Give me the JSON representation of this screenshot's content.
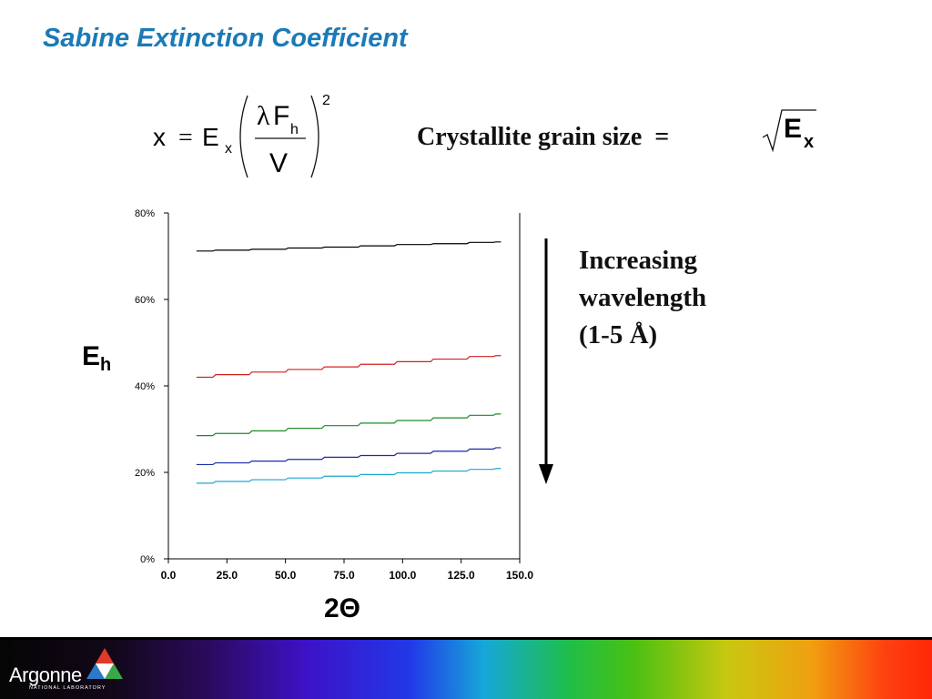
{
  "slide": {
    "title": "Sabine Extinction Coefficient",
    "crystallite_label": "Crystallite grain size  =",
    "sqrt_symbol": "E",
    "sqrt_subscript": "x",
    "annotation_lines": [
      "Increasing",
      "wavelength",
      "(1-5 Å)"
    ],
    "logo_text": "Argonne",
    "logo_subtext": "NATIONAL LABORATORY"
  },
  "formula": {
    "lhs": "x",
    "eq": "=",
    "coef": "E",
    "coef_sub": "x",
    "lambda": "λ",
    "F": "F",
    "F_sub": "h",
    "denominator": "V",
    "exponent": "2"
  },
  "chart_data": {
    "type": "line",
    "xlabel": "2Θ",
    "ylabel": "E",
    "ylabel_sub": "h",
    "xlim": [
      0,
      150
    ],
    "ylim": [
      0,
      80
    ],
    "xticks": [
      "0.0",
      "25.0",
      "50.0",
      "75.0",
      "100.0",
      "125.0",
      "150.0"
    ],
    "yticks": [
      "0%",
      "20%",
      "40%",
      "60%",
      "80%"
    ],
    "x": [
      12,
      27.5,
      43,
      58.5,
      74,
      89.5,
      105,
      120.5,
      136,
      142
    ],
    "series": [
      {
        "color": "#000000",
        "values": [
          71.2,
          71.4,
          71.6,
          71.9,
          72.1,
          72.4,
          72.7,
          72.9,
          73.2,
          73.3
        ]
      },
      {
        "color": "#d42020",
        "values": [
          42.0,
          42.6,
          43.2,
          43.8,
          44.4,
          45.0,
          45.6,
          46.2,
          46.8,
          47.0
        ]
      },
      {
        "color": "#1a8a2a",
        "values": [
          28.5,
          29.0,
          29.6,
          30.2,
          30.8,
          31.4,
          32.0,
          32.6,
          33.2,
          33.5
        ]
      },
      {
        "color": "#1a2aa8",
        "values": [
          21.8,
          22.2,
          22.6,
          23.0,
          23.5,
          23.9,
          24.4,
          24.9,
          25.4,
          25.7
        ]
      },
      {
        "color": "#1aa8d0",
        "values": [
          17.5,
          17.9,
          18.3,
          18.7,
          19.1,
          19.5,
          19.9,
          20.3,
          20.7,
          20.9
        ]
      }
    ],
    "grid": false
  },
  "colors": {
    "title": "#1a7ab8",
    "arrow": "#000000"
  }
}
